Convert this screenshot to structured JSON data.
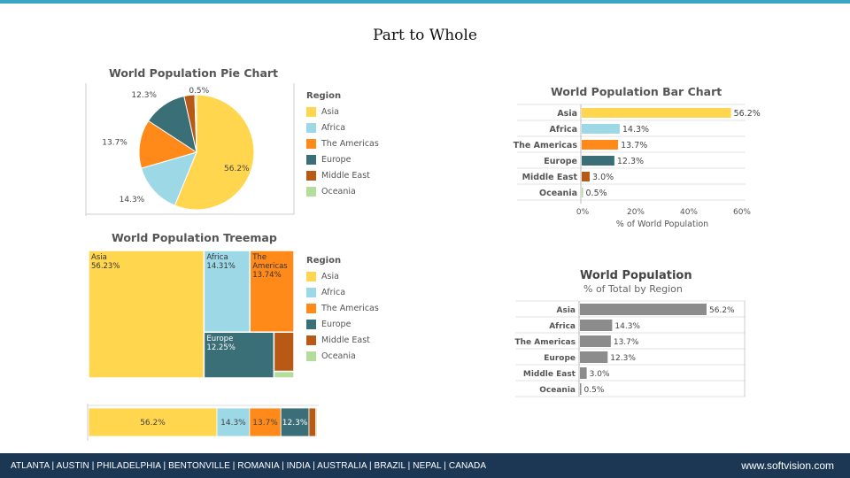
{
  "slide_title": "Part to Whole",
  "footer": {
    "cities": "ATLANTA | AUSTIN | PHILADELPHIA | BENTONVILLE | ROMANIA | INDIA | AUSTRALIA | BRAZIL | NEPAL | CANADA",
    "url": "www.softvision.com"
  },
  "colors": {
    "asia": "#ffd64d",
    "africa": "#9dd8e6",
    "americas": "#ff8a1a",
    "europe": "#3b6f78",
    "middle_east": "#b85a16",
    "oceania": "#b4dc9c",
    "gray_bar": "#8c8c8c"
  },
  "legend": {
    "title": "Region",
    "items": [
      "Asia",
      "Africa",
      "The Americas",
      "Europe",
      "Middle East",
      "Oceania"
    ]
  },
  "chart_data": [
    {
      "id": "pie",
      "type": "pie",
      "title": "World Population Pie Chart",
      "categories": [
        "Asia",
        "Africa",
        "The Americas",
        "Europe",
        "Middle East",
        "Oceania"
      ],
      "values": [
        56.2,
        14.3,
        13.7,
        12.3,
        3.0,
        0.5
      ],
      "labels": [
        "56.2%",
        "14.3%",
        "13.7%",
        "12.3%",
        "",
        "0.5%"
      ]
    },
    {
      "id": "bar",
      "type": "bar",
      "orientation": "horizontal",
      "title": "World Population Bar Chart",
      "categories": [
        "Asia",
        "Africa",
        "The Americas",
        "Europe",
        "Middle East",
        "Oceania"
      ],
      "values": [
        56.2,
        14.3,
        13.7,
        12.3,
        3.0,
        0.5
      ],
      "labels": [
        "56.2%",
        "14.3%",
        "13.7%",
        "12.3%",
        "3.0%",
        "0.5%"
      ],
      "xlim": [
        0,
        60
      ],
      "ticks": [
        "0%",
        "20%",
        "40%",
        "60%"
      ],
      "xlabel": "% of World Population"
    },
    {
      "id": "treemap",
      "type": "treemap",
      "title": "World Population Treemap",
      "categories": [
        "Asia",
        "Africa",
        "The Americas",
        "Europe",
        "Middle East",
        "Oceania"
      ],
      "values": [
        56.23,
        14.31,
        13.74,
        12.25,
        3.0,
        0.5
      ],
      "labels": [
        [
          "Asia",
          "56.23%"
        ],
        [
          "Africa",
          "14.31%"
        ],
        [
          "The",
          "Americas",
          "13.74%"
        ],
        [
          "Europe",
          "12.25%"
        ],
        [],
        []
      ]
    },
    {
      "id": "stacked",
      "type": "bar",
      "orientation": "stacked-horizontal",
      "categories": [
        "Asia",
        "Africa",
        "The Americas",
        "Europe",
        "Middle East",
        "Oceania"
      ],
      "values": [
        56.2,
        14.3,
        13.7,
        12.3,
        3.0,
        0.5
      ],
      "labels": [
        "56.2%",
        "14.3%",
        "13.7%",
        "12.3%",
        "",
        ""
      ]
    },
    {
      "id": "gray_bar",
      "type": "bar",
      "orientation": "horizontal",
      "title": "World Population",
      "subtitle": "% of Total by Region",
      "categories": [
        "Asia",
        "Africa",
        "The Americas",
        "Europe",
        "Middle East",
        "Oceania"
      ],
      "values": [
        56.2,
        14.3,
        13.7,
        12.3,
        3.0,
        0.5
      ],
      "labels": [
        "56.2%",
        "14.3%",
        "13.7%",
        "12.3%",
        "3.0%",
        "0.5%"
      ]
    }
  ]
}
